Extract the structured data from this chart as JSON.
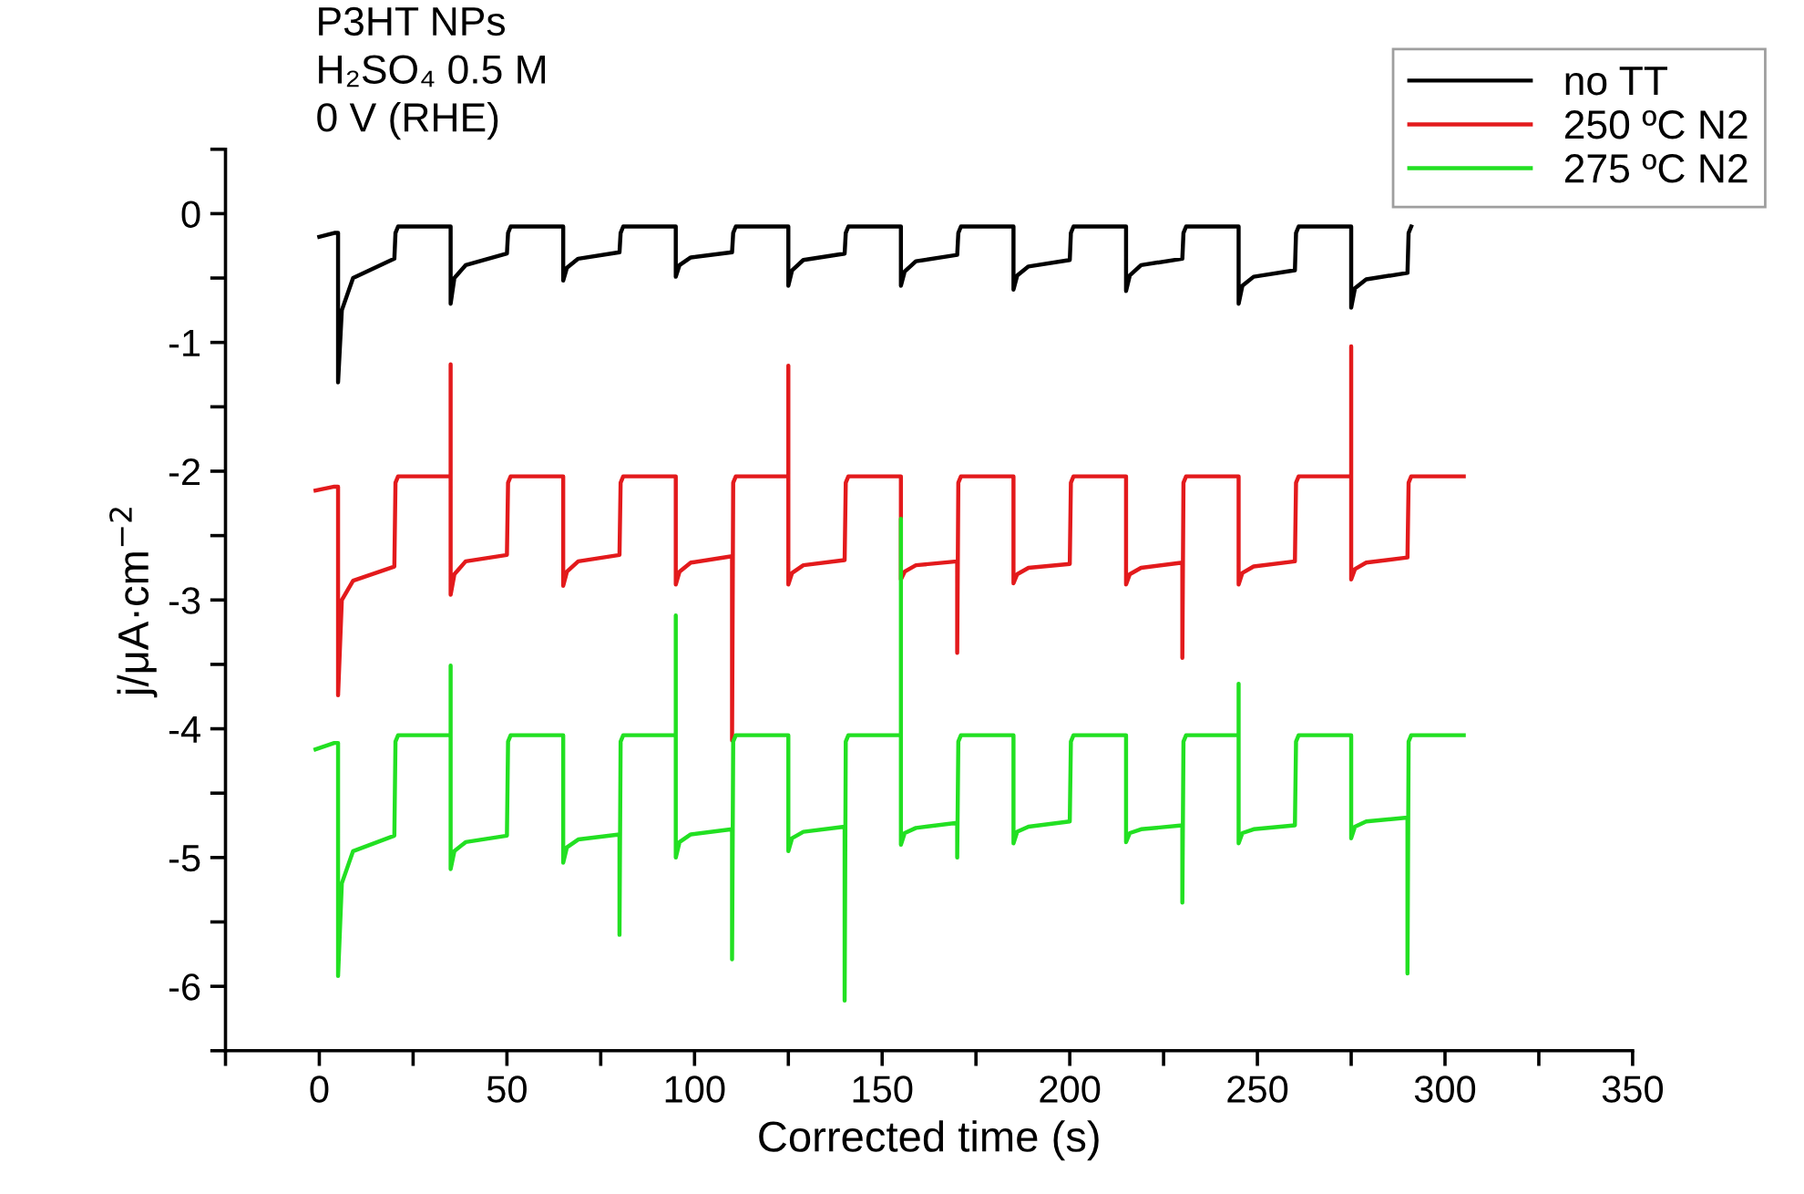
{
  "chart_data": {
    "type": "line",
    "xlabel": "Corrected time (s)",
    "ylabel": "j/μA·cm$^{−2}$",
    "annotations": [
      "P3HT NPs\nH₂SO₄ 0.5 M\n0 V (RHE)"
    ],
    "xlim": [
      -25,
      350
    ],
    "ylim": [
      -6.5,
      0.5
    ],
    "xticks": [
      {
        "value": -25,
        "label": null
      },
      0,
      {
        "value": 25,
        "label": null
      },
      50,
      {
        "value": 75,
        "label": null
      },
      100,
      {
        "value": 125,
        "label": null
      },
      150,
      {
        "value": 175,
        "label": null
      },
      200,
      {
        "value": 225,
        "label": null
      },
      250,
      {
        "value": 275,
        "label": null
      },
      300,
      {
        "value": 325,
        "label": null
      },
      350
    ],
    "yticks": [
      {
        "value": -6.5,
        "label": null
      },
      -6,
      {
        "value": -5.5,
        "label": null
      },
      -5,
      {
        "value": -4.5,
        "label": null
      },
      -4,
      {
        "value": -3.5,
        "label": null
      },
      -3,
      {
        "value": -2.5,
        "label": null
      },
      -2,
      {
        "value": -1.5,
        "label": null
      },
      -1,
      {
        "value": -0.5,
        "label": null
      },
      0,
      {
        "value": 0.5,
        "label": null
      }
    ],
    "grid": false,
    "legend": "top right",
    "line_style": "solid",
    "marker": "none",
    "series": [
      {
        "name": "no TT",
        "color": "#000000",
        "x": [
          0,
          4,
          5,
          5,
          6,
          9,
          20,
          20.3,
          21,
          35,
          35,
          36,
          39,
          50,
          50.3,
          51,
          65,
          65,
          66,
          69,
          80,
          80.3,
          81,
          95,
          95,
          96,
          99,
          110,
          110.3,
          111,
          125,
          125,
          126,
          129,
          140,
          140.3,
          141,
          155,
          155,
          156,
          159,
          170,
          170.3,
          171,
          185,
          185,
          186,
          189,
          200,
          200.3,
          201,
          215,
          215,
          216,
          219,
          230,
          230.3,
          231,
          245,
          245,
          246,
          249,
          260,
          260.3,
          261,
          275,
          275,
          276,
          279,
          290,
          290.3,
          291
        ],
        "values": [
          -0.18,
          -0.15,
          -0.15,
          -1.31,
          -0.75,
          -0.5,
          -0.35,
          -0.15,
          -0.1,
          -0.1,
          -0.7,
          -0.5,
          -0.4,
          -0.31,
          -0.15,
          -0.1,
          -0.1,
          -0.52,
          -0.42,
          -0.35,
          -0.3,
          -0.15,
          -0.1,
          -0.1,
          -0.49,
          -0.4,
          -0.34,
          -0.3,
          -0.15,
          -0.1,
          -0.1,
          -0.56,
          -0.44,
          -0.36,
          -0.31,
          -0.15,
          -0.1,
          -0.1,
          -0.56,
          -0.45,
          -0.37,
          -0.32,
          -0.15,
          -0.1,
          -0.1,
          -0.59,
          -0.48,
          -0.41,
          -0.36,
          -0.15,
          -0.1,
          -0.1,
          -0.6,
          -0.48,
          -0.4,
          -0.35,
          -0.15,
          -0.1,
          -0.1,
          -0.7,
          -0.56,
          -0.49,
          -0.44,
          -0.15,
          -0.1,
          -0.1,
          -0.73,
          -0.58,
          -0.51,
          -0.46,
          -0.15,
          -0.1
        ]
      },
      {
        "name": "250 ºC N2",
        "color": "#e31a1c",
        "x": [
          -1,
          4,
          5,
          5,
          6,
          9,
          20,
          20.3,
          21,
          35,
          35,
          35,
          36,
          39,
          50,
          50.3,
          51,
          65,
          65,
          66,
          69,
          80,
          80.3,
          81,
          95,
          95,
          96,
          99,
          110,
          110,
          110.3,
          111,
          125,
          125,
          125,
          126,
          129,
          140,
          140.3,
          141,
          155,
          155,
          156,
          159,
          170,
          170,
          170.3,
          171,
          185,
          185,
          186,
          189,
          200,
          200.3,
          201,
          215,
          215,
          216,
          219,
          230,
          230,
          230.3,
          231,
          245,
          245,
          246,
          249,
          260,
          260.3,
          261,
          275,
          275,
          275,
          276,
          279,
          290,
          290.3,
          291,
          305
        ],
        "values": [
          -2.15,
          -2.12,
          -2.12,
          -3.74,
          -3.0,
          -2.85,
          -2.74,
          -2.09,
          -2.04,
          -2.04,
          -1.17,
          -2.96,
          -2.8,
          -2.7,
          -2.65,
          -2.09,
          -2.04,
          -2.04,
          -2.89,
          -2.78,
          -2.7,
          -2.65,
          -2.09,
          -2.04,
          -2.04,
          -2.88,
          -2.78,
          -2.71,
          -2.66,
          -4.09,
          -2.09,
          -2.04,
          -2.04,
          -1.18,
          -2.88,
          -2.79,
          -2.73,
          -2.69,
          -2.09,
          -2.04,
          -2.04,
          -2.84,
          -2.78,
          -2.73,
          -2.7,
          -3.41,
          -2.09,
          -2.04,
          -2.04,
          -2.87,
          -2.8,
          -2.75,
          -2.72,
          -2.09,
          -2.04,
          -2.04,
          -2.88,
          -2.8,
          -2.75,
          -2.71,
          -3.45,
          -2.09,
          -2.04,
          -2.04,
          -2.88,
          -2.79,
          -2.74,
          -2.7,
          -2.09,
          -2.04,
          -2.04,
          -1.03,
          -2.84,
          -2.76,
          -2.71,
          -2.67,
          -2.09,
          -2.04,
          -2.04
        ]
      },
      {
        "name": "275 ºC N2",
        "color": "#22e022",
        "x": [
          -1,
          4,
          5,
          5,
          6,
          9,
          20,
          20.3,
          21,
          35,
          35,
          35,
          36,
          39,
          50,
          50.3,
          51,
          65,
          65,
          66,
          69,
          80,
          80,
          80.3,
          81,
          95,
          95,
          95,
          96,
          99,
          110,
          110,
          110.3,
          111,
          125,
          125,
          126,
          129,
          140,
          140,
          140.3,
          141,
          155,
          155,
          155,
          156,
          159,
          170,
          170,
          170.3,
          171,
          185,
          185,
          186,
          189,
          200,
          200.3,
          201,
          215,
          215,
          216,
          219,
          230,
          230,
          230.3,
          231,
          245,
          245,
          245,
          246,
          249,
          260,
          260.3,
          261,
          275,
          275,
          276,
          279,
          290,
          290,
          290.3,
          291,
          305
        ],
        "values": [
          -4.16,
          -4.11,
          -4.11,
          -5.92,
          -5.2,
          -4.95,
          -4.83,
          -4.1,
          -4.05,
          -4.05,
          -3.51,
          -5.09,
          -4.95,
          -4.88,
          -4.83,
          -4.1,
          -4.05,
          -4.05,
          -5.04,
          -4.92,
          -4.86,
          -4.82,
          -5.6,
          -4.1,
          -4.05,
          -4.05,
          -3.12,
          -5.0,
          -4.88,
          -4.82,
          -4.78,
          -5.79,
          -4.1,
          -4.05,
          -4.05,
          -4.95,
          -4.85,
          -4.8,
          -4.76,
          -6.11,
          -4.1,
          -4.05,
          -4.05,
          -2.37,
          -4.9,
          -4.81,
          -4.77,
          -4.73,
          -5.0,
          -4.1,
          -4.05,
          -4.05,
          -4.89,
          -4.8,
          -4.76,
          -4.72,
          -4.1,
          -4.05,
          -4.05,
          -4.88,
          -4.81,
          -4.78,
          -4.75,
          -5.35,
          -4.1,
          -4.05,
          -4.05,
          -3.65,
          -4.89,
          -4.81,
          -4.78,
          -4.75,
          -4.1,
          -4.05,
          -4.05,
          -4.85,
          -4.76,
          -4.72,
          -4.69,
          -5.9,
          -4.1,
          -4.05,
          -4.05
        ]
      }
    ]
  }
}
